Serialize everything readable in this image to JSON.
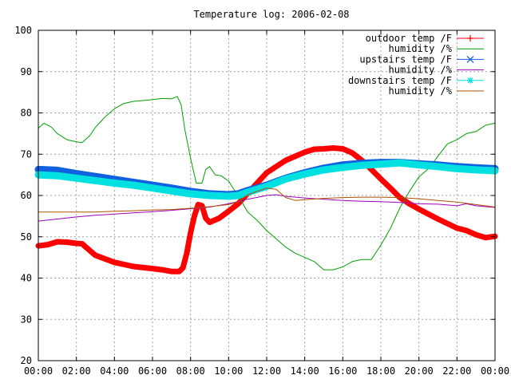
{
  "chart_data": {
    "type": "line",
    "title": "Temperature log: 2006-02-08",
    "xlabel": "",
    "ylabel": "",
    "xlim": [
      0,
      24
    ],
    "ylim": [
      20,
      100
    ],
    "x_ticks": [
      "00:00",
      "02:00",
      "04:00",
      "06:00",
      "08:00",
      "10:00",
      "12:00",
      "14:00",
      "16:00",
      "18:00",
      "20:00",
      "22:00",
      "00:00"
    ],
    "y_ticks": [
      "20",
      "30",
      "40",
      "50",
      "60",
      "70",
      "80",
      "90",
      "100"
    ],
    "grid": true,
    "legend_position": "top-right",
    "series": [
      {
        "name": "outdoor temp /F",
        "color": "#ff0000",
        "marker": "plus",
        "x": [
          0,
          0.5,
          1,
          1.5,
          2,
          2.3,
          2.5,
          3,
          4,
          5,
          6,
          6.5,
          7,
          7.4,
          7.6,
          7.8,
          8,
          8.2,
          8.4,
          8.6,
          8.8,
          9,
          9.5,
          10,
          10.5,
          11,
          12,
          13,
          14,
          14.5,
          15,
          15.5,
          16,
          16.5,
          17,
          17.5,
          18,
          18.5,
          19,
          19.5,
          20,
          21,
          22,
          22.5,
          23,
          23.5,
          24
        ],
        "y": [
          47.8,
          48.1,
          48.8,
          48.7,
          48.4,
          48.3,
          47.5,
          45.5,
          43.8,
          42.8,
          42.3,
          42,
          41.6,
          41.6,
          42.5,
          46,
          51,
          55,
          57.8,
          57.5,
          54.5,
          53.5,
          54.5,
          56.2,
          58,
          60.5,
          65.5,
          68.5,
          70.5,
          71.2,
          71.3,
          71.5,
          71.3,
          70.3,
          68.5,
          66.3,
          64,
          61.8,
          59.5,
          58,
          56.7,
          54.3,
          52.1,
          51.5,
          50.5,
          49.8,
          50.1
        ]
      },
      {
        "name": "humidity /%",
        "color": "#00a000",
        "x": [
          0,
          0.3,
          0.7,
          1,
          1.5,
          2,
          2.3,
          2.7,
          3,
          3.5,
          4,
          4.5,
          5,
          5.5,
          6,
          6.5,
          7,
          7.3,
          7.5,
          7.7,
          8,
          8.3,
          8.6,
          8.8,
          9,
          9.3,
          9.6,
          10,
          10.2,
          10.5,
          11,
          11.5,
          12,
          12.5,
          13,
          13.5,
          14,
          14.5,
          15,
          15.5,
          16,
          16.5,
          17,
          17.5,
          18,
          18.5,
          19,
          19.5,
          20,
          20.5,
          21,
          21.5,
          22,
          22.5,
          23,
          23.5,
          24
        ],
        "y": [
          76.3,
          77.5,
          76.5,
          75,
          73.5,
          73,
          72.8,
          74.5,
          76.5,
          79,
          81,
          82.3,
          82.8,
          83,
          83.2,
          83.5,
          83.4,
          84,
          82,
          76,
          69,
          63,
          63,
          66.3,
          67,
          65,
          64.8,
          63.5,
          62,
          60,
          56,
          54,
          51.5,
          49.5,
          47.5,
          46,
          45,
          44,
          42,
          42,
          42.7,
          44,
          44.5,
          44.5,
          48,
          52,
          57,
          61,
          64.5,
          66.5,
          69.5,
          72.5,
          73.5,
          75,
          75.5,
          77,
          77.5
        ]
      },
      {
        "name": "upstairs temp /F",
        "color": "#1060e0",
        "marker": "cross",
        "x": [
          0,
          1,
          2,
          3,
          4,
          5,
          6,
          7,
          8,
          9,
          10,
          10.5,
          11,
          12,
          13,
          14,
          15,
          16,
          17,
          18,
          19,
          20,
          21,
          22,
          23,
          24
        ],
        "y": [
          66.3,
          66.1,
          65.3,
          64.6,
          63.9,
          63.2,
          62.5,
          61.8,
          61,
          60.4,
          60.2,
          60.4,
          61.2,
          62.5,
          64.2,
          65.5,
          66.6,
          67.4,
          67.8,
          68,
          68,
          67.7,
          67.4,
          67,
          66.7,
          66.5
        ]
      },
      {
        "name": "humidity /%",
        "color": "#a000c0",
        "x": [
          0,
          1,
          2,
          3,
          4,
          5,
          6,
          7,
          8,
          9,
          10,
          11,
          12,
          12.5,
          13,
          14,
          15,
          16,
          17,
          18,
          19,
          20,
          21,
          22,
          22.5,
          23,
          24
        ],
        "y": [
          53.8,
          54.3,
          54.8,
          55.2,
          55.5,
          55.8,
          56.1,
          56.4,
          56.8,
          57.2,
          58,
          59.1,
          60,
          60.2,
          59.8,
          59.4,
          59.1,
          58.8,
          58.6,
          58.5,
          58.3,
          58,
          57.9,
          57.5,
          58,
          57.5,
          57.1
        ]
      },
      {
        "name": "downstairs temp /F",
        "color": "#00e0e0",
        "marker": "star",
        "x": [
          0,
          1,
          2,
          3,
          4,
          5,
          6,
          7,
          8,
          9,
          10,
          10.5,
          11,
          12,
          13,
          14,
          15,
          16,
          17,
          18,
          19,
          20,
          21,
          22,
          23,
          24
        ],
        "y": [
          65,
          64.8,
          64.2,
          63.6,
          63,
          62.5,
          61.8,
          61.1,
          60.4,
          60,
          59.8,
          60,
          60.8,
          62.2,
          64,
          65.2,
          66.2,
          66.8,
          67.3,
          67.6,
          67.9,
          67.4,
          67,
          66.5,
          66.2,
          66
        ]
      },
      {
        "name": "humidity /%",
        "color": "#b05000",
        "x": [
          0,
          1,
          2,
          3,
          4,
          5,
          6,
          7,
          8,
          9,
          10,
          10.5,
          11,
          11.5,
          12,
          12.5,
          13,
          13.5,
          14,
          15,
          16,
          17,
          18,
          19,
          20,
          21,
          22,
          23,
          24
        ],
        "y": [
          56,
          56,
          56,
          56,
          56.2,
          56.3,
          56.5,
          56.6,
          56.9,
          57.3,
          57.8,
          58.5,
          60.2,
          61,
          61.8,
          61.5,
          59.5,
          58.8,
          59,
          59.3,
          59.5,
          59.6,
          59.6,
          59.5,
          59.2,
          58.8,
          58.4,
          57.8,
          57.2
        ]
      }
    ]
  }
}
